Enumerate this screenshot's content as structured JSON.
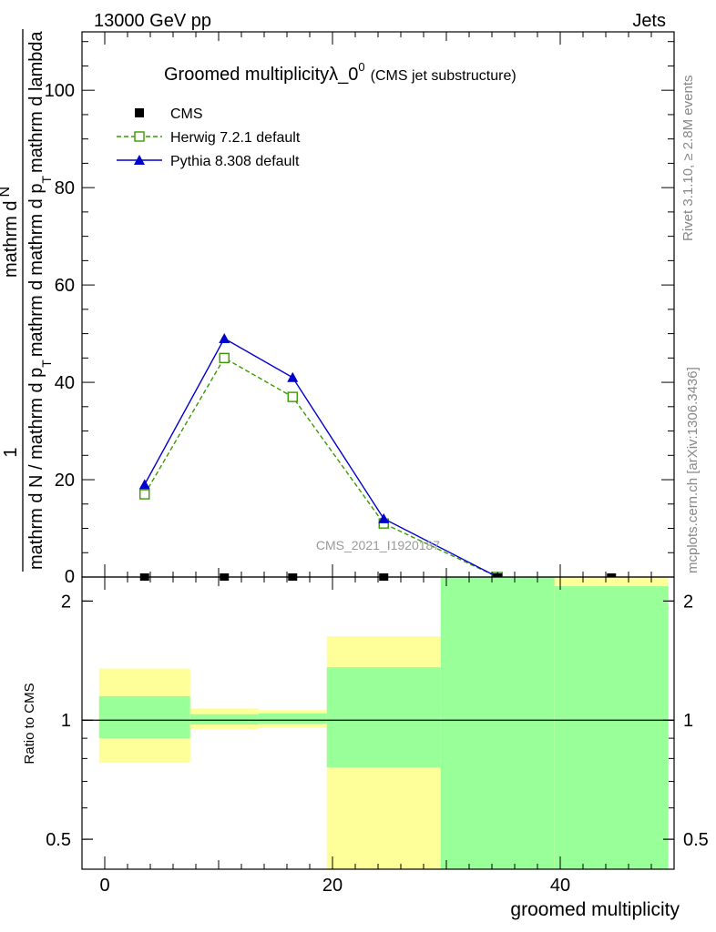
{
  "header": {
    "left": "13000 GeV pp",
    "right": "Jets"
  },
  "side_labels": {
    "rivet": "Rivet 3.1.10, ≥ 2.8M events",
    "mcplots": "mcplots.cern.ch [arXiv:1306.3436]"
  },
  "watermark": "CMS_2021_I1920187",
  "chart_data": [
    {
      "type": "line",
      "panel": "main",
      "title": "Groomed multiplicityλ_0",
      "title_sup": "0",
      "title_suffix": "(CMS jet substructure)",
      "ylabel_numerator": "1",
      "ylabel_denominator": "mathrm d N / mathrm d p",
      "ylabel_numerator_rhs": "mathrm d",
      "ylabel_numerator_rhs2": "N",
      "ylabel_denominator_rhs": "mathrm d p",
      "ylabel_denominator_rhs2": "mathrm d lambda",
      "ylabel_sub": "T",
      "ylabel_mid": "mathrm d",
      "xlim": [
        -2,
        50
      ],
      "ylim": [
        0,
        112
      ],
      "yticks": [
        20,
        40,
        60,
        80,
        100
      ],
      "ytick_labels": [
        "20",
        "40",
        "60",
        "80",
        "100"
      ],
      "y0_label": "0",
      "legend": [
        {
          "name": "CMS",
          "style": "square-black"
        },
        {
          "name": "Herwig 7.2.1 default",
          "style": "green-dashed-open-square"
        },
        {
          "name": "Pythia 8.308 default",
          "style": "blue-solid-triangle"
        }
      ],
      "series": [
        {
          "name": "CMS",
          "color": "#000000",
          "x": [
            3.5,
            10.5,
            16.5,
            24.5,
            34.5,
            44.5
          ],
          "values": [
            0,
            0,
            0,
            0,
            0,
            0
          ]
        },
        {
          "name": "Herwig 7.2.1 default",
          "color": "#3a9a00",
          "x": [
            3.5,
            10.5,
            16.5,
            24.5,
            34.5
          ],
          "values": [
            17,
            45,
            37,
            11,
            0
          ]
        },
        {
          "name": "Pythia 8.308 default",
          "color": "#0000cc",
          "x": [
            3.5,
            10.5,
            16.5,
            24.5,
            34.5
          ],
          "values": [
            19,
            49,
            41,
            12,
            0
          ]
        }
      ]
    },
    {
      "type": "area",
      "panel": "ratio",
      "ylabel": "Ratio to CMS",
      "xlabel": "groomed multiplicity",
      "scale": "log",
      "ylim": [
        0.42,
        2.3
      ],
      "yticks": [
        0.5,
        1,
        2
      ],
      "ytick_labels": [
        "0.5",
        "1",
        "2"
      ],
      "xticks": [
        0,
        20,
        40
      ],
      "xtick_labels": [
        "0",
        "20",
        "40"
      ],
      "reference": 1,
      "bands": [
        {
          "x0": -0.5,
          "x1": 7.5,
          "yellow": [
            0.78,
            1.35
          ],
          "green": [
            0.9,
            1.15
          ]
        },
        {
          "x0": 7.5,
          "x1": 13.5,
          "yellow": [
            0.95,
            1.07
          ],
          "green": [
            0.975,
            1.035
          ]
        },
        {
          "x0": 13.5,
          "x1": 19.5,
          "yellow": [
            0.96,
            1.06
          ],
          "green": [
            0.98,
            1.04
          ]
        },
        {
          "x0": 19.5,
          "x1": 29.5,
          "yellow": [
            0.41,
            1.63
          ],
          "green": [
            0.76,
            1.36
          ]
        },
        {
          "x0": 29.5,
          "x1": 39.5,
          "yellow": [
            0.1,
            3.0
          ],
          "green": [
            0.1,
            3.0
          ]
        },
        {
          "x0": 39.5,
          "x1": 49.5,
          "yellow": [
            0.1,
            3.0
          ],
          "green": [
            0.1,
            2.18
          ]
        }
      ]
    }
  ],
  "colors": {
    "yellow_band": "#ffff99",
    "green_band": "#99ff99",
    "herwig": "#3a9a00",
    "pythia": "#0000cc",
    "watermark": "#999999"
  }
}
